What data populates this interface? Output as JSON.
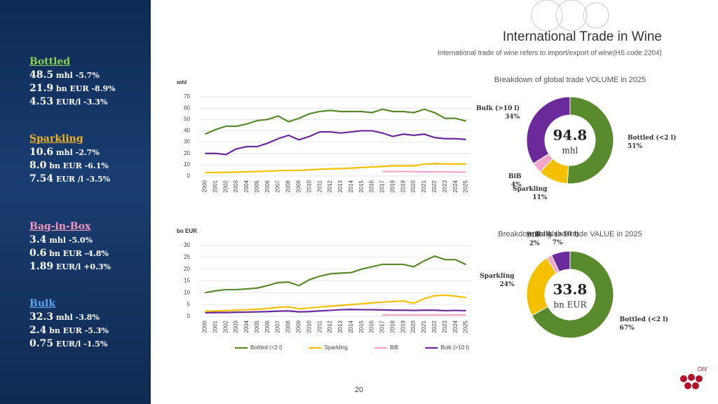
{
  "header": {
    "title": "International Trade in Wine",
    "subtitle": "International trade of wine refers to import/export of wine(HS code 2204)"
  },
  "sidebar": [
    {
      "name": "Bottled",
      "color": "#8fd14f",
      "lines": [
        [
          "48.5",
          "mhl",
          "-5.7%"
        ],
        [
          "21.9",
          "bn EUR",
          "-8.9%"
        ],
        [
          "4.53",
          "EUR/l",
          "-3.3%"
        ]
      ]
    },
    {
      "name": "Sparkling",
      "color": "#f0b323",
      "lines": [
        [
          "10.6",
          "mhl",
          "-2.7%"
        ],
        [
          "8.0",
          "bn EUR",
          "-6.1%"
        ],
        [
          "7.54",
          "EUR /l",
          "-3.5%"
        ]
      ]
    },
    {
      "name": "Bag-in-Box",
      "color": "#f49ac1",
      "lines": [
        [
          "3.4",
          "mhl",
          "-5.0%"
        ],
        [
          "0.6",
          "bn EUR",
          "-4.8%"
        ],
        [
          "1.89",
          "EUR/l",
          "+0.3%"
        ]
      ]
    },
    {
      "name": "Bulk",
      "color": "#5aa8f0",
      "lines": [
        [
          "32.3",
          "mhl",
          "-3.8%"
        ],
        [
          "2.4",
          "bn EUR",
          "-5.3%"
        ],
        [
          "0.75",
          "EUR/l",
          "-1.5%"
        ]
      ]
    }
  ],
  "page_number": "20",
  "logo": "OIV",
  "chart_data": [
    {
      "type": "line",
      "y_label": "mhl",
      "categories": [
        "2000",
        "2001",
        "2002",
        "2003",
        "2004",
        "2005",
        "2006",
        "2007",
        "2008",
        "2009",
        "2010",
        "2011",
        "2012",
        "2013",
        "2014",
        "2015",
        "2016",
        "2017",
        "2018",
        "2019",
        "2020",
        "2021",
        "2022",
        "2023",
        "2024",
        "2025"
      ],
      "ylim": [
        0,
        70
      ],
      "yticks": [
        0,
        10,
        20,
        30,
        40,
        50,
        60,
        70
      ],
      "grid": true,
      "series": [
        {
          "color": "#5a8a2e",
          "values": [
            37,
            41,
            44,
            44,
            46,
            49,
            50,
            53,
            48,
            51,
            55,
            57,
            58,
            57,
            57,
            57,
            56,
            59,
            57,
            57,
            56,
            59,
            56,
            51,
            51,
            48.5
          ]
        },
        {
          "color": "#f5c000",
          "values": [
            3,
            3.2,
            3.3,
            3.5,
            3.8,
            4,
            4.3,
            4.7,
            5,
            5,
            5.5,
            6,
            6.3,
            6.6,
            7,
            7.5,
            8,
            8.5,
            9,
            9,
            9,
            10.5,
            11,
            10.8,
            10.7,
            10.6
          ]
        },
        {
          "color": "#f4a6c8",
          "values": [
            null,
            null,
            null,
            null,
            null,
            null,
            null,
            null,
            null,
            null,
            null,
            null,
            null,
            null,
            null,
            null,
            null,
            4,
            4,
            4,
            3.9,
            3.8,
            3.7,
            3.6,
            3.5,
            3.4
          ]
        },
        {
          "color": "#6a2a9a",
          "values": [
            20,
            20,
            19,
            24,
            26,
            26,
            29,
            33,
            36,
            32,
            35,
            39,
            39,
            38,
            39,
            40,
            40,
            38,
            35,
            37,
            36,
            37,
            34,
            33,
            33,
            32.3
          ]
        }
      ]
    },
    {
      "type": "line",
      "y_label": "bn EUR",
      "categories": [
        "2000",
        "2001",
        "2002",
        "2003",
        "2004",
        "2005",
        "2006",
        "2007",
        "2008",
        "2009",
        "2010",
        "2011",
        "2012",
        "2013",
        "2014",
        "2015",
        "2016",
        "2017",
        "2018",
        "2019",
        "2020",
        "2021",
        "2022",
        "2023",
        "2024",
        "2025"
      ],
      "ylim": [
        0,
        30
      ],
      "yticks": [
        0,
        5,
        10,
        15,
        20,
        25,
        30
      ],
      "grid": true,
      "legend": "bottom",
      "series": [
        {
          "name": "Bottled (<2 l)",
          "color": "#5a8a2e",
          "values": [
            10,
            10.8,
            11.3,
            11.3,
            11.6,
            12,
            13,
            14.3,
            14.5,
            13,
            15.5,
            17,
            18,
            18.3,
            18.5,
            20,
            21,
            22,
            22,
            22,
            21,
            23.5,
            25.5,
            24,
            24,
            21.9
          ]
        },
        {
          "name": "Sparkling",
          "color": "#f5c000",
          "values": [
            2.2,
            2.2,
            2.4,
            2.6,
            2.8,
            3,
            3.3,
            3.8,
            4,
            3.2,
            3.5,
            4,
            4.3,
            4.6,
            5,
            5.3,
            5.7,
            6,
            6.3,
            6.5,
            5.5,
            7.5,
            8.7,
            9,
            8.5,
            8.0
          ]
        },
        {
          "name": "BiB",
          "color": "#f4a6c8",
          "values": [
            null,
            null,
            null,
            null,
            null,
            null,
            null,
            null,
            null,
            null,
            null,
            null,
            null,
            null,
            null,
            null,
            null,
            0.6,
            0.6,
            0.6,
            0.6,
            0.6,
            0.6,
            0.6,
            0.6,
            0.6
          ]
        },
        {
          "name": "Bulk (>10 l)",
          "color": "#6a2a9a",
          "values": [
            1.5,
            1.6,
            1.6,
            1.7,
            1.8,
            1.9,
            2,
            2.2,
            2.3,
            1.9,
            2,
            2.3,
            2.5,
            2.8,
            2.9,
            2.8,
            2.8,
            2.7,
            2.6,
            2.6,
            2.5,
            2.6,
            2.6,
            2.4,
            2.5,
            2.4
          ]
        }
      ]
    },
    {
      "type": "donut",
      "title": "Breakdown of global trade VOLUME in 2025",
      "center_value": 94.8,
      "center_unit": "mhl",
      "categories": [
        "Bottled (<2 l)",
        "Sparkling",
        "BiB",
        "Bulk (>10 l)"
      ],
      "values": [
        51,
        11,
        4,
        34
      ],
      "value_labels": [
        "51%",
        "11%",
        "4%",
        "34%"
      ],
      "colors": [
        "#5a8a2e",
        "#f5c000",
        "#f4a6c8",
        "#6a2a9a"
      ]
    },
    {
      "type": "donut",
      "title": "Breakdown of global trade VALUE in 2025",
      "center_value": 33.8,
      "center_unit": "bn EUR",
      "categories": [
        "Bottled (<2 l)",
        "Sparkling",
        "BiB",
        "Bulk (>10 l)"
      ],
      "values": [
        67,
        24,
        2,
        7
      ],
      "value_labels": [
        "67%",
        "24%",
        "2%",
        "7%"
      ],
      "colors": [
        "#5a8a2e",
        "#f5c000",
        "#f4a6c8",
        "#6a2a9a"
      ]
    }
  ]
}
